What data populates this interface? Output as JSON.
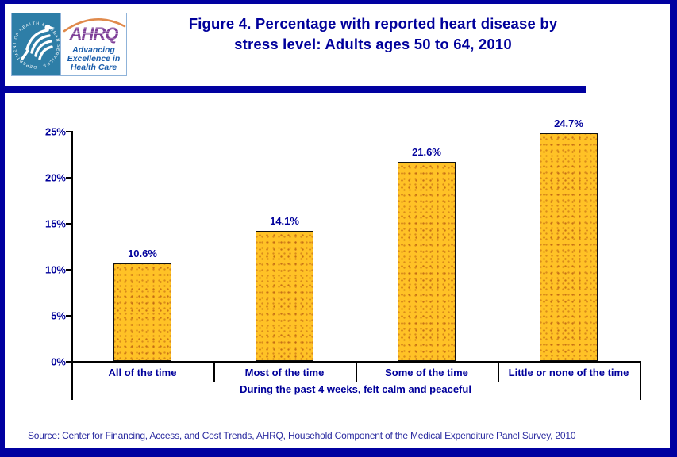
{
  "header": {
    "logo": {
      "hhs_circular_text": "DEPARTMENT OF HEALTH & HUMAN SERVICES · USA",
      "ahrq_acronym": "AHRQ",
      "tagline_line1": "Advancing",
      "tagline_line2": "Excellence in",
      "tagline_line3": "Health Care"
    },
    "title_line1": "Figure 4. Percentage with reported heart disease by",
    "title_line2": "stress level: Adults ages 50 to 64, 2010"
  },
  "chart_data": {
    "type": "bar",
    "title": "Figure 4. Percentage with reported heart disease by stress level: Adults ages 50 to 64, 2010",
    "categories": [
      "All of the time",
      "Most of the time",
      "Some of the time",
      "Little or none of the time"
    ],
    "values": [
      10.6,
      14.1,
      21.6,
      24.7
    ],
    "value_labels": [
      "10.6%",
      "14.1%",
      "21.6%",
      "24.7%"
    ],
    "xlabel": "During the past 4 weeks, felt calm and peaceful",
    "ylabel": "",
    "ylim": [
      0,
      25
    ],
    "y_ticks": [
      "0%",
      "5%",
      "10%",
      "15%",
      "20%",
      "25%"
    ],
    "grid": false,
    "legend": false
  },
  "footer": {
    "source": "Source: Center for Financing, Access, and Cost Trends, AHRQ, Household Component of the Medical Expenditure Panel Survey, 2010"
  },
  "colors": {
    "frame_navy": "#0000A0",
    "text_navy": "#00009B",
    "bar_gold": "#FFC226",
    "hhs_teal": "#2E7EA7",
    "ahrq_purple": "#7E3F97",
    "tagline_blue": "#1A5DAB",
    "arc_orange": "#E08A4C",
    "source_blue": "#2B2BA0"
  }
}
